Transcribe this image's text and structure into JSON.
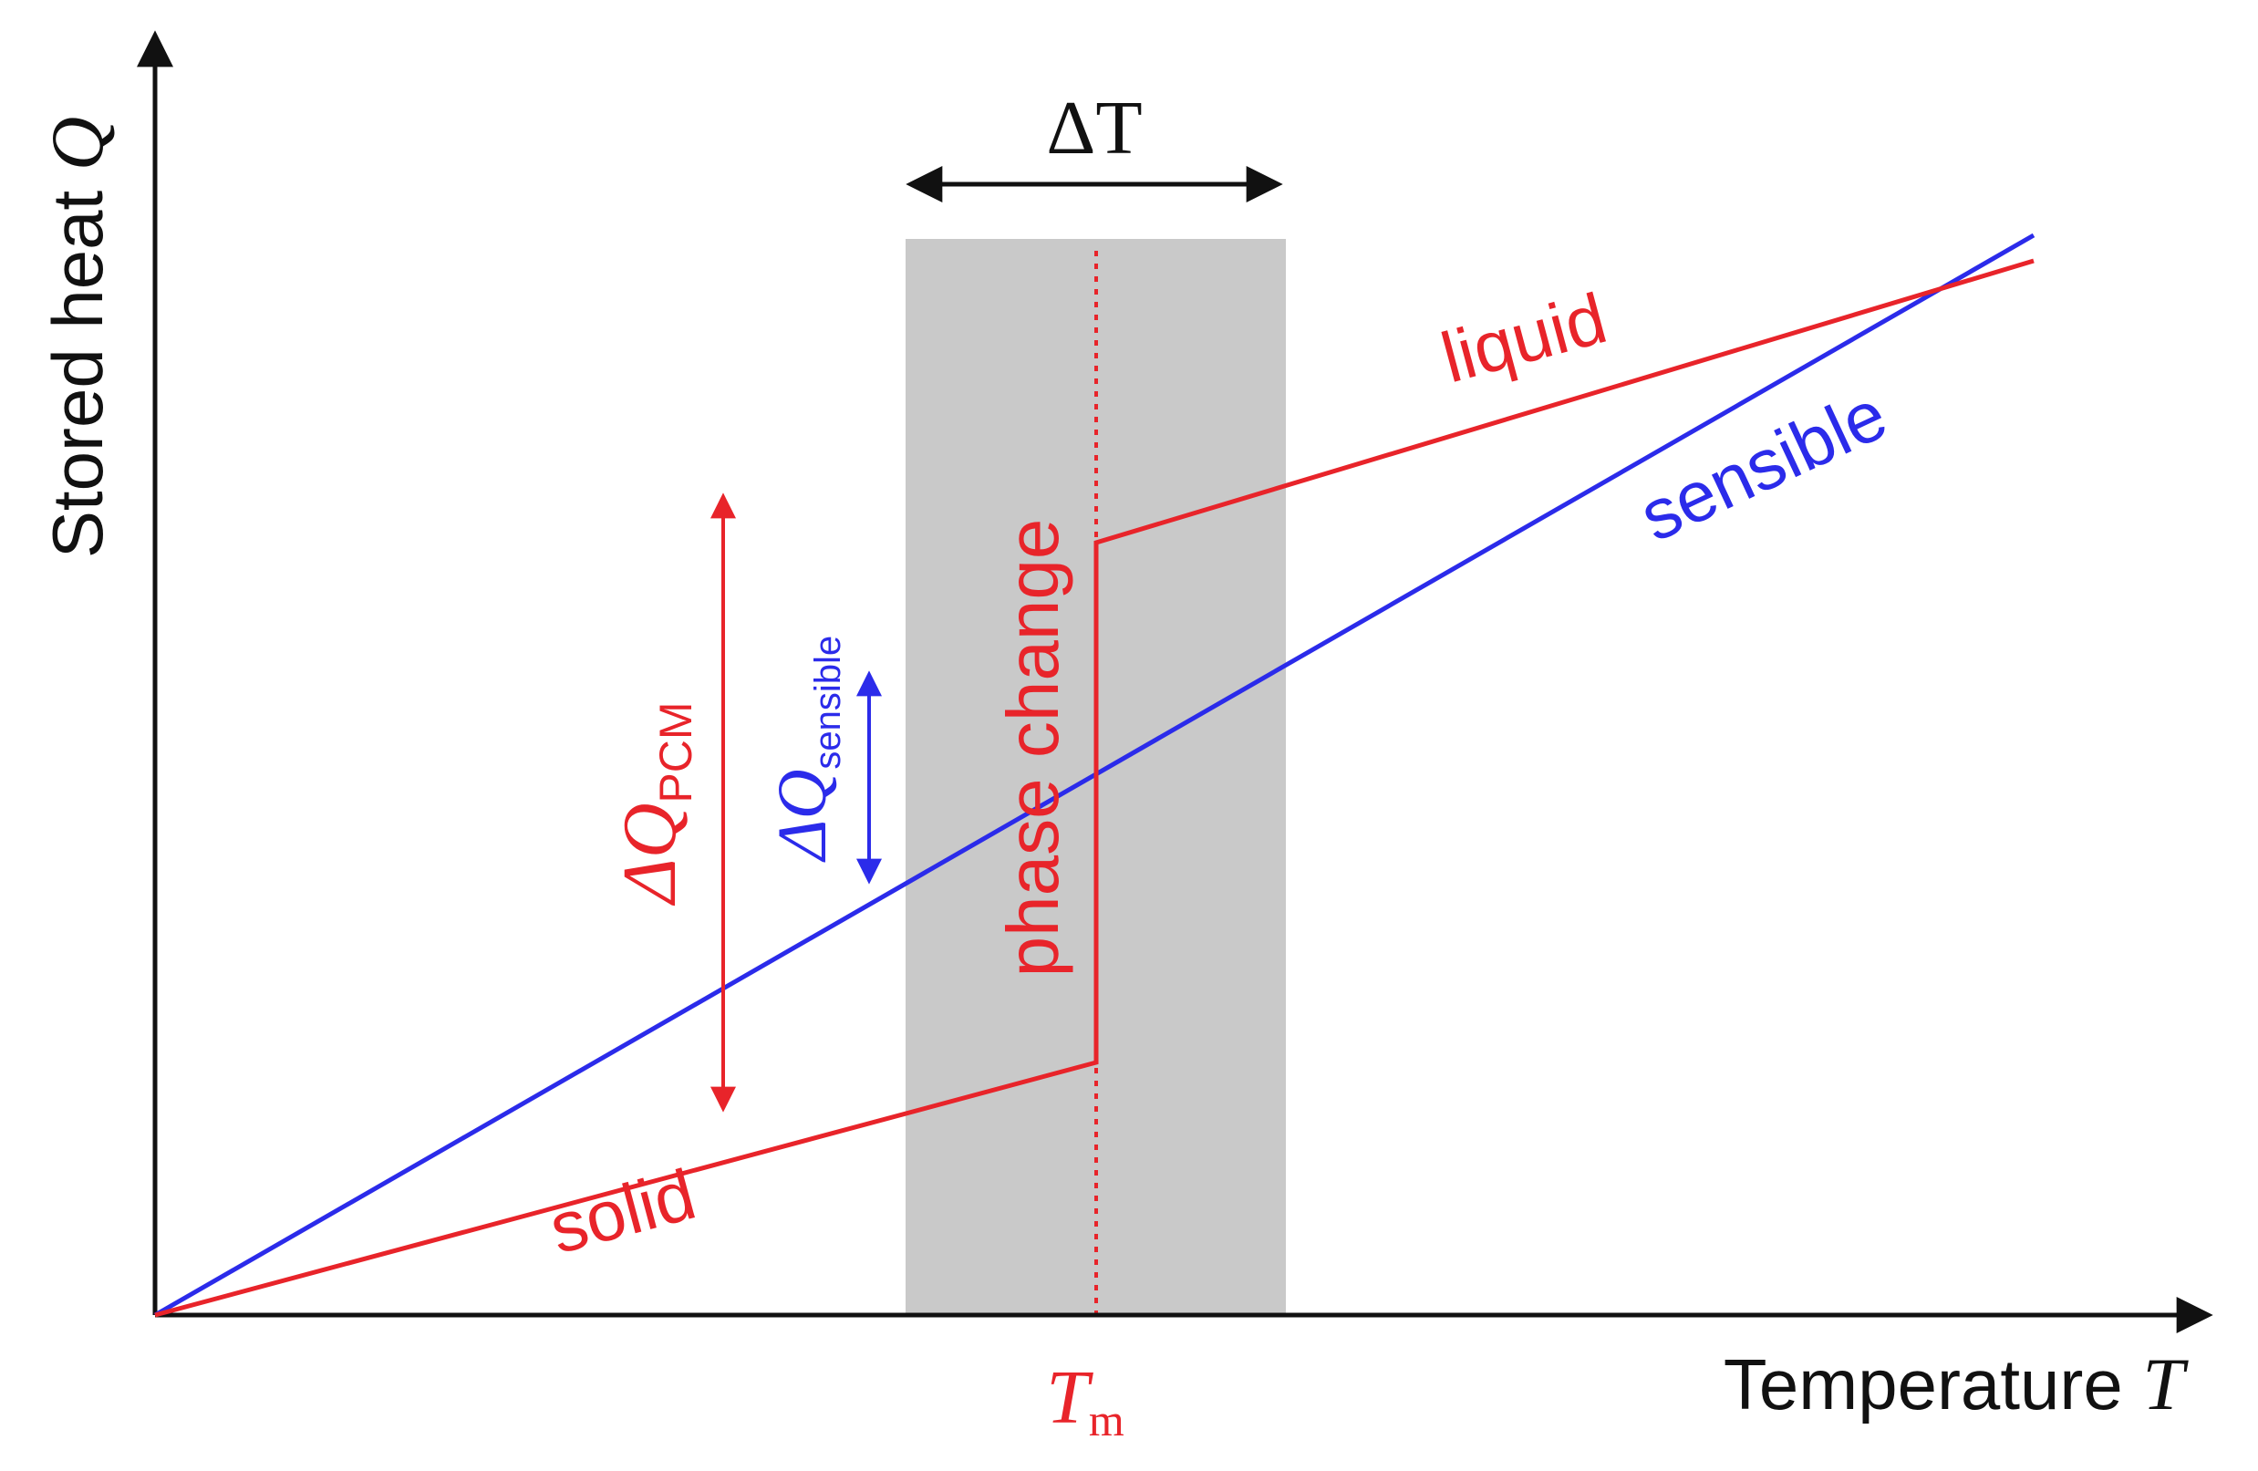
{
  "axes": {
    "y_label_text": "Stored heat ",
    "y_label_var": "Q",
    "x_label_text": "Temperature ",
    "x_label_var": "T"
  },
  "annotations": {
    "delta_t": "ΔT",
    "tm_symbol": "T",
    "tm_subscript": "m",
    "phase_change": "phase change",
    "solid": "solid",
    "liquid": "liquid",
    "sensible": "sensible",
    "dq_pcm_main": "ΔQ",
    "dq_pcm_sub": "PCM",
    "dq_sensible_main": "ΔQ",
    "dq_sensible_sub": "sensible"
  },
  "colors": {
    "pcm": "#e8242a",
    "sensible": "#2b2bea",
    "axis": "#111111",
    "band": "#c9c9c9"
  }
}
